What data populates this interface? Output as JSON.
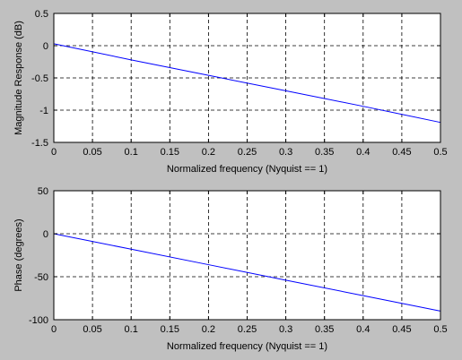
{
  "figure": {
    "background": "#c0c0c0",
    "plot_background": "#ffffff",
    "line_color": "#0000ff"
  },
  "chart_data": [
    {
      "type": "line",
      "title": "",
      "xlabel": "Normalized frequency (Nyquist == 1)",
      "ylabel": "Magnitude Response (dB)",
      "xlim": [
        0,
        0.5
      ],
      "ylim": [
        -1.5,
        0.5
      ],
      "grid": true,
      "x_ticks": [
        0,
        0.05,
        0.1,
        0.15,
        0.2,
        0.25,
        0.3,
        0.35,
        0.4,
        0.45,
        0.5
      ],
      "x_tick_labels": [
        "0",
        "0.05",
        "0.1",
        "0.15",
        "0.2",
        "0.25",
        "0.3",
        "0.35",
        "0.4",
        "0.45",
        "0.5"
      ],
      "y_ticks": [
        -1.5,
        -1,
        -0.5,
        0,
        0.5
      ],
      "y_tick_labels": [
        "-1.5",
        "-1",
        "-0.5",
        "0",
        "0.5"
      ],
      "series": [
        {
          "x": [
            0,
            0.1,
            0.2,
            0.3,
            0.4,
            0.5
          ],
          "y": [
            0.03,
            -0.22,
            -0.46,
            -0.7,
            -0.94,
            -1.19
          ]
        }
      ]
    },
    {
      "type": "line",
      "title": "",
      "xlabel": "Normalized frequency (Nyquist == 1)",
      "ylabel": "Phase (degrees)",
      "xlim": [
        0,
        0.5
      ],
      "ylim": [
        -100,
        50
      ],
      "grid": true,
      "x_ticks": [
        0,
        0.05,
        0.1,
        0.15,
        0.2,
        0.25,
        0.3,
        0.35,
        0.4,
        0.45,
        0.5
      ],
      "x_tick_labels": [
        "0",
        "0.05",
        "0.1",
        "0.15",
        "0.2",
        "0.25",
        "0.3",
        "0.35",
        "0.4",
        "0.45",
        "0.5"
      ],
      "y_ticks": [
        -100,
        -50,
        0,
        50
      ],
      "y_tick_labels": [
        "-100",
        "-50",
        "0",
        "50"
      ],
      "series": [
        {
          "x": [
            0,
            0.1,
            0.2,
            0.3,
            0.4,
            0.5
          ],
          "y": [
            0,
            -18,
            -36,
            -54,
            -72,
            -90
          ]
        }
      ]
    }
  ]
}
